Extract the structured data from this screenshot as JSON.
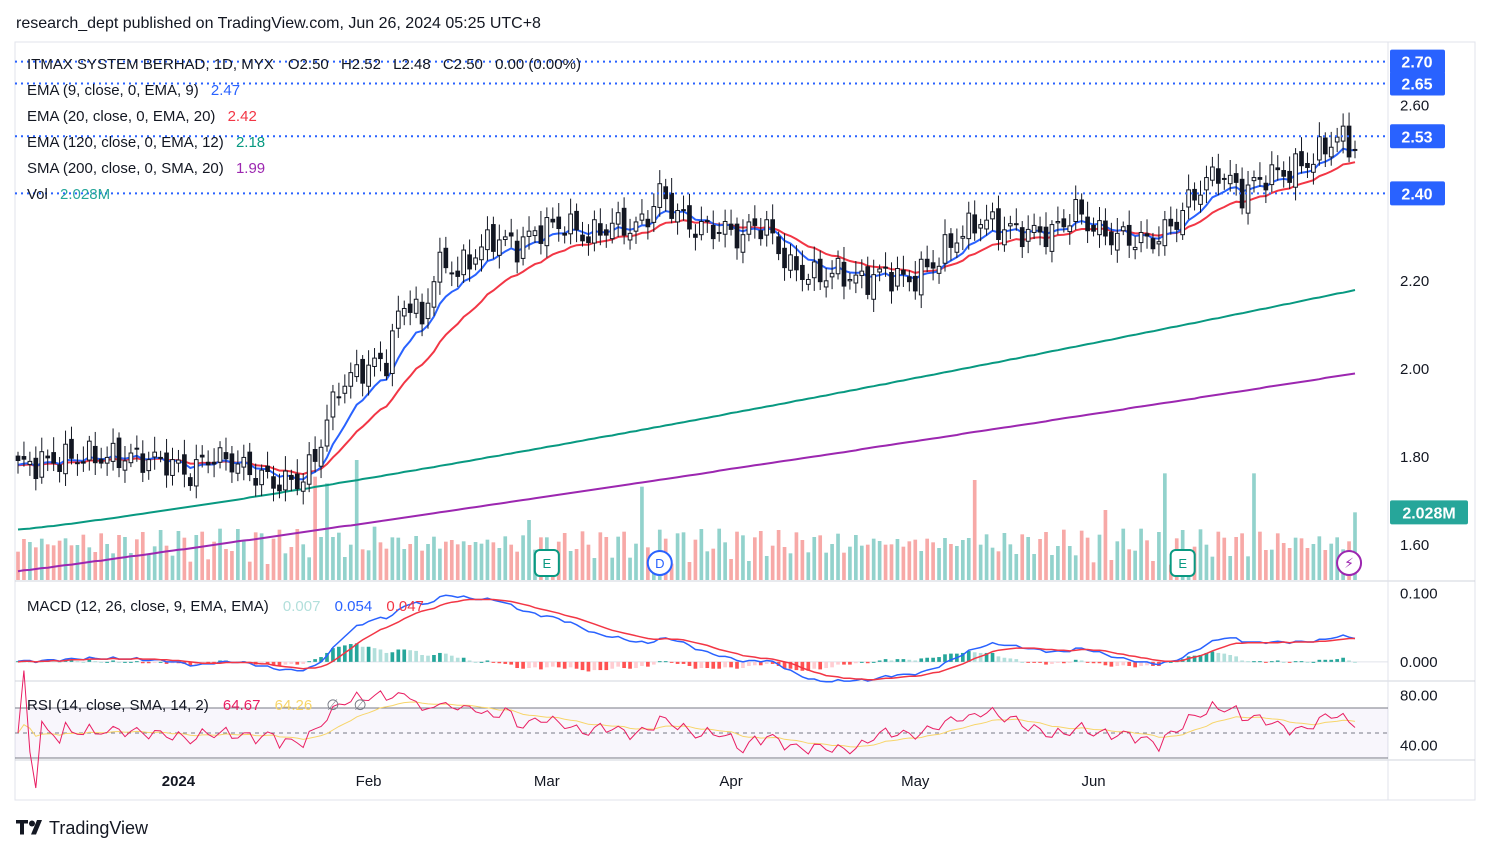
{
  "header": {
    "published_line": "research_dept published on TradingView.com, Jun 26, 2024 05:25 UTC+8"
  },
  "footer": {
    "brand": "TradingView",
    "logo_icon": "tradingview-logo-icon"
  },
  "legend": {
    "symbol_line": "ITMAX SYSTEM BERHAD, 1D, MYX",
    "ohlc": {
      "open": "O2.50",
      "high": "H2.52",
      "low": "L2.48",
      "close": "C2.50",
      "change": "0.00 (0.00%)"
    },
    "indicators": [
      {
        "label": "EMA (9, close, 0, EMA, 9)",
        "value": "2.47",
        "color": "#2962ff"
      },
      {
        "label": "EMA (20, close, 0, EMA, 20)",
        "value": "2.42",
        "color": "#f23645"
      },
      {
        "label": "EMA (120, close, 0, EMA, 12)",
        "value": "2.18",
        "color": "#089981"
      },
      {
        "label": "SMA (200, close, 0, SMA, 20)",
        "value": "1.99",
        "color": "#9c27b0"
      },
      {
        "label": "Vol",
        "value": "2.028M",
        "color": "#26a69a"
      }
    ]
  },
  "macd_legend": {
    "label": "MACD (12, 26, close, 9, EMA, EMA)",
    "hist": "0.007",
    "macd": "0.054",
    "signal": "0.047",
    "hist_color": "#b2dfdb",
    "macd_color": "#2962ff",
    "signal_color": "#f23645"
  },
  "rsi_legend": {
    "label": "RSI (14, close, SMA, 14, 2)",
    "rsi": "64.67",
    "rsi_ma": "64.26",
    "extra1": "∅",
    "extra2": "∅",
    "rsi_color": "#e91e63",
    "ma_color": "#f7d56a"
  },
  "price_badges": [
    {
      "value": "2.70",
      "price": 2.7
    },
    {
      "value": "2.65",
      "price": 2.65
    },
    {
      "value": "2.53",
      "price": 2.53
    },
    {
      "value": "2.40",
      "price": 2.4
    }
  ],
  "volume_badge": "2.028M",
  "event_markers": [
    {
      "letter": "E",
      "kind": "earnings",
      "index": 89
    },
    {
      "letter": "D",
      "kind": "dividend",
      "index": 108
    },
    {
      "letter": "E",
      "kind": "earnings",
      "index": 196
    },
    {
      "letter": "⚡",
      "kind": "news-icon",
      "index": 224
    }
  ],
  "chart_data": {
    "type": "candlestick",
    "symbol": "ITMAX SYSTEM BERHAD",
    "interval": "1D",
    "exchange": "MYX",
    "price_ticks": [
      "2.60",
      "2.20",
      "2.00",
      "1.80",
      "1.60"
    ],
    "macd_ticks": [
      "0.100",
      "0.000"
    ],
    "rsi_ticks": [
      "80.00",
      "40.00"
    ],
    "x_labels": [
      "2024",
      "Feb",
      "Mar",
      "Apr",
      "May",
      "Jun"
    ],
    "x_label_index": [
      27,
      59,
      89,
      120,
      151,
      181
    ],
    "ylim": [
      1.52,
      2.74
    ],
    "volume_max_millions": 3.6,
    "macd_ylim": [
      -0.025,
      0.115
    ],
    "rsi_ylim": [
      30,
      90
    ],
    "rsi_levels": [
      70,
      50,
      30
    ],
    "dotted_levels": [
      2.7,
      2.65,
      2.53,
      2.4
    ],
    "candles": [],
    "ema9": [],
    "ema20": [],
    "ema120": [],
    "sma200": [],
    "volume_millions": [],
    "macd": [],
    "macd_signal": [],
    "macd_hist": [],
    "rsi": [],
    "rsi_ma": []
  }
}
